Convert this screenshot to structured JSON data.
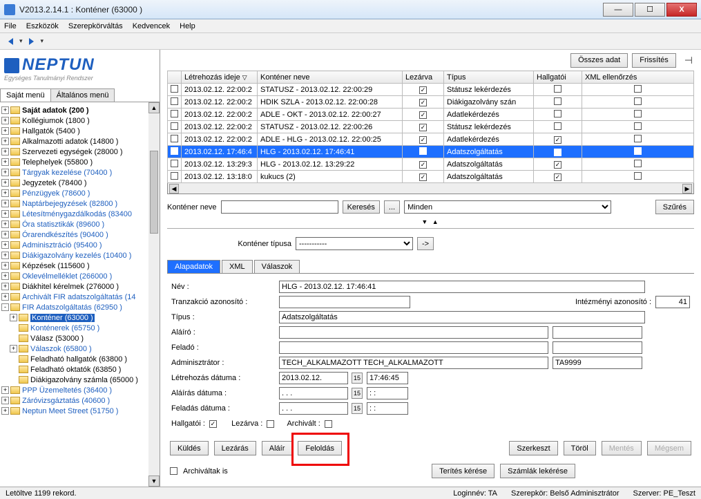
{
  "window": {
    "title": "V2013.2.14.1 : Konténer (63000  )"
  },
  "menu": [
    "File",
    "Eszközök",
    "Szerepkörváltás",
    "Kedvencek",
    "Help"
  ],
  "logo": {
    "text": "NEPTUN",
    "sub": "Egységes Tanulmányi Rendszer"
  },
  "left_tabs": {
    "active": "Saját menü",
    "inactive": "Általános menü"
  },
  "tree": [
    {
      "lvl": 0,
      "exp": "+",
      "label": "Saját adatok (200  )",
      "bold": true
    },
    {
      "lvl": 0,
      "exp": "+",
      "label": "Kollégiumok (1800  )"
    },
    {
      "lvl": 0,
      "exp": "+",
      "label": "Hallgatók (5400  )"
    },
    {
      "lvl": 0,
      "exp": "+",
      "label": "Alkalmazotti adatok (14800  )"
    },
    {
      "lvl": 0,
      "exp": "+",
      "label": "Szervezeti egységek (28000  )"
    },
    {
      "lvl": 0,
      "exp": "+",
      "label": "Telephelyek (55800  )"
    },
    {
      "lvl": 0,
      "exp": "+",
      "label": "Tárgyak kezelése (70400  )",
      "blue": true
    },
    {
      "lvl": 0,
      "exp": "+",
      "label": "Jegyzetek (78400  )"
    },
    {
      "lvl": 0,
      "exp": "+",
      "label": "Pénzügyek (78600  )",
      "blue": true
    },
    {
      "lvl": 0,
      "exp": "+",
      "label": "Naptárbejegyzések (82800  )",
      "blue": true
    },
    {
      "lvl": 0,
      "exp": "+",
      "label": "Létesítménygazdálkodás (83400",
      "blue": true
    },
    {
      "lvl": 0,
      "exp": "+",
      "label": "Óra statisztikák (89600  )",
      "blue": true
    },
    {
      "lvl": 0,
      "exp": "+",
      "label": "Órarendkészítés (90400  )",
      "blue": true
    },
    {
      "lvl": 0,
      "exp": "+",
      "label": "Adminisztráció (95400  )",
      "blue": true
    },
    {
      "lvl": 0,
      "exp": "+",
      "label": "Diákigazolvány kezelés (10400  )",
      "blue": true
    },
    {
      "lvl": 0,
      "exp": "+",
      "label": "Képzések (115600  )"
    },
    {
      "lvl": 0,
      "exp": "+",
      "label": "Oklevélmelléklet (266000  )",
      "blue": true
    },
    {
      "lvl": 0,
      "exp": "+",
      "label": "Diákhitel kérelmek (276000  )"
    },
    {
      "lvl": 0,
      "exp": "+",
      "label": "Archivált FIR adatszolgáltatás (14",
      "blue": true
    },
    {
      "lvl": 0,
      "exp": "-",
      "label": "FIR Adatszolgáltatás (62950  )",
      "blue": true
    },
    {
      "lvl": 1,
      "exp": "+",
      "label": "Konténer (63000  )",
      "blue": true,
      "selected": true
    },
    {
      "lvl": 1,
      "exp": "",
      "label": "Konténerek (65750  )",
      "blue": true
    },
    {
      "lvl": 1,
      "exp": "",
      "label": "Válasz (53000  )"
    },
    {
      "lvl": 1,
      "exp": "+",
      "label": "Válaszok (65800  )",
      "blue": true
    },
    {
      "lvl": 1,
      "exp": "",
      "label": "Feladható hallgatók (63800  )"
    },
    {
      "lvl": 1,
      "exp": "",
      "label": "Feladható oktatók (63850  )"
    },
    {
      "lvl": 1,
      "exp": "",
      "label": "Diákigazolvány számla (65000  )"
    },
    {
      "lvl": 0,
      "exp": "+",
      "label": "PPP Üzemeltetés (36400  )",
      "blue": true
    },
    {
      "lvl": 0,
      "exp": "+",
      "label": "Záróvizsgáztatás (40600  )",
      "blue": true
    },
    {
      "lvl": 0,
      "exp": "+",
      "label": "Neptun Meet Street (51750  )",
      "blue": true
    }
  ],
  "topbtns": {
    "all": "Összes adat",
    "refresh": "Frissítés"
  },
  "grid": {
    "cols": [
      "",
      "Létrehozás ideje",
      "Konténer neve",
      "Lezárva",
      "Típus",
      "Hallgatói",
      "XML ellenőrzés"
    ],
    "rows": [
      {
        "c1": "2013.02.12. 22:00:2",
        "c2": "STATUSZ - 2013.02.12. 22:00:29",
        "lez": true,
        "tip": "Státusz lekérdezés",
        "hal": false,
        "xml": false
      },
      {
        "c1": "2013.02.12. 22:00:2",
        "c2": "HDIK SZLA - 2013.02.12. 22:00:28",
        "lez": true,
        "tip": "Diákigazolvány szán",
        "hal": false,
        "xml": false
      },
      {
        "c1": "2013.02.12. 22:00:2",
        "c2": "ADLE - OKT - 2013.02.12. 22:00:27",
        "lez": true,
        "tip": "Adatlekérdezés",
        "hal": false,
        "xml": false
      },
      {
        "c1": "2013.02.12. 22:00:2",
        "c2": "STATUSZ - 2013.02.12. 22:00:26",
        "lez": true,
        "tip": "Státusz lekérdezés",
        "hal": false,
        "xml": false
      },
      {
        "c1": "2013.02.12. 22:00:2",
        "c2": "ADLE - HLG - 2013.02.12. 22:00:25",
        "lez": true,
        "tip": "Adatlekérdezés",
        "hal": true,
        "xml": false
      },
      {
        "c1": "2013.02.12. 17:46:4",
        "c2": "HLG - 2013.02.12. 17:46:41",
        "lez": false,
        "tip": "Adatszolgáltatás",
        "hal": true,
        "xml": false,
        "sel": true
      },
      {
        "c1": "2013.02.12. 13:29:3",
        "c2": "HLG - 2013.02.12. 13:29:22",
        "lez": true,
        "tip": "Adatszolgáltatás",
        "hal": true,
        "xml": false
      },
      {
        "c1": "2013.02.12. 13:18:0",
        "c2": "kukucs (2)",
        "lez": true,
        "tip": "Adatszolgáltatás",
        "hal": true,
        "xml": false
      }
    ]
  },
  "search": {
    "label": "Konténer neve",
    "btn": "Keresés",
    "dots": "...",
    "filter": "Minden",
    "filterbtn": "Szűrés"
  },
  "ktip": {
    "label": "Konténer típusa",
    "value": "-----------",
    "go": "->"
  },
  "dtabs": [
    "Alapadatok",
    "XML",
    "Válaszok"
  ],
  "form": {
    "nev_l": "Név :",
    "nev_v": "HLG - 2013.02.12. 17:46:41",
    "tranz_l": "Tranzakció azonosító :",
    "tranz_v": "",
    "intez_l": "Intézményi azonosító :",
    "intez_v": "41",
    "tipus_l": "Típus :",
    "tipus_v": "Adatszolgáltatás",
    "alairo_l": "Aláíró :",
    "alairo_v": "",
    "felado_l": "Feladó :",
    "felado_v": "",
    "admin_l": "Adminisztrátor :",
    "admin_v": "TECH_ALKALMAZOTT TECH_ALKALMAZOTT",
    "admin_v2": "TA9999",
    "letre_l": "Létrehozás dátuma :",
    "letre_d": "2013.02.12.",
    "letre_t": "17:46:45",
    "alad_l": "Aláírás dátuma :",
    "alad_d": ". . .",
    "alad_t": ": :",
    "felad_l": "Feladás dátuma :",
    "felad_d": ". . .",
    "felad_t": ": :",
    "hal_l": "Hallgatói :",
    "lez_l": "Lezárva :",
    "arch_l": "Archivált :",
    "archis": "Archiváltak is"
  },
  "buttons": {
    "kuldes": "Küldés",
    "lezaras": "Lezárás",
    "alair": "Aláír",
    "feloldas": "Feloldás",
    "szerkeszt": "Szerkeszt",
    "torol": "Töröl",
    "mentes": "Mentés",
    "megsem": "Mégsem",
    "terites": "Terítés kérése",
    "szamlak": "Számlák lekérése"
  },
  "status": {
    "left": "Letöltve 1199 rekord.",
    "login": "Loginnév: TA",
    "szerep": "Szerepkör: Belső Adminisztrátor",
    "szerver": "Szerver: PE_Teszt"
  }
}
